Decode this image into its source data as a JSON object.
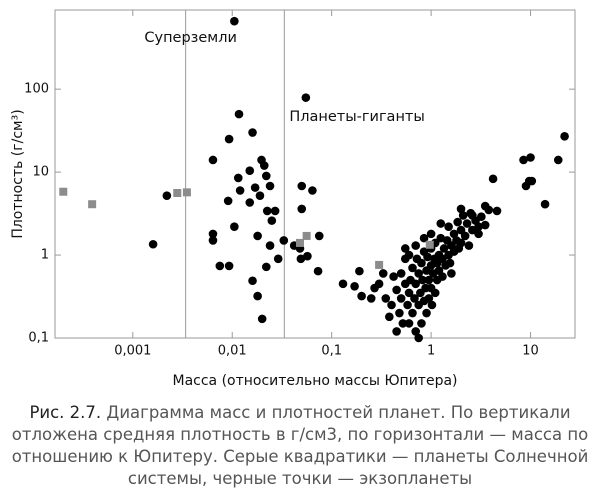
{
  "chart_data": {
    "type": "scatter",
    "x_label": "Масса (относительно массы Юпитера)",
    "y_label": "Плотность (г/см³)",
    "log_x": true,
    "log_y": true,
    "xlim": [
      0.000165,
      28
    ],
    "ylim": [
      0.1,
      900
    ],
    "xticks": [
      {
        "value": 0.001,
        "label": "0,001"
      },
      {
        "value": 0.01,
        "label": "0,01"
      },
      {
        "value": 0.1,
        "label": "0,1"
      },
      1,
      10
    ],
    "yticks": [
      {
        "value": 0.1,
        "label": "0,1"
      },
      1,
      10,
      100
    ],
    "vlines": [
      {
        "value": 0.0034,
        "label": "Суперземли"
      },
      {
        "value": 0.0334,
        "label": "Планеты-гиганты"
      }
    ],
    "series": [
      {
        "color": "#000000",
        "marker": "circle",
        "x": [
          0.0105,
          0.055,
          0.0117,
          0.016,
          0.0093,
          0.0064,
          0.0197,
          0.021,
          0.015,
          0.0115,
          0.022,
          0.024,
          0.05,
          0.064,
          0.012,
          0.017,
          0.019,
          0.0022,
          0.0091,
          0.015,
          0.027,
          0.0225,
          0.05,
          0.025,
          0.0105,
          0.0064,
          0.018,
          0.033,
          0.042,
          0.075,
          0.0016,
          0.0064,
          0.024,
          0.048,
          0.029,
          0.022,
          0.0075,
          0.0093,
          0.057,
          0.073,
          0.018,
          0.02,
          0.049,
          0.016,
          0.13,
          0.17,
          0.2,
          0.19,
          8.5,
          10,
          19,
          22,
          9,
          9.7,
          14,
          10.3,
          4.6,
          4.2,
          3.5,
          2.6,
          3,
          0.3,
          0.35,
          0.4,
          0.42,
          0.45,
          0.48,
          0.5,
          0.5,
          0.52,
          0.55,
          0.55,
          0.58,
          0.6,
          0.6,
          0.62,
          0.65,
          0.65,
          0.68,
          0.7,
          0.7,
          0.72,
          0.75,
          0.75,
          0.78,
          0.8,
          0.8,
          0.82,
          0.85,
          0.85,
          0.88,
          0.9,
          0.9,
          0.92,
          0.95,
          0.95,
          1.0,
          1.0,
          1.0,
          1.02,
          1.05,
          1.08,
          1.1,
          1.1,
          1.15,
          1.15,
          1.2,
          1.2,
          1.25,
          1.3,
          1.3,
          1.35,
          1.4,
          1.45,
          1.5,
          1.5,
          1.55,
          1.6,
          1.7,
          1.7,
          1.8,
          1.85,
          1.9,
          2.0,
          2.0,
          2.1,
          2.2,
          2.3,
          2.4,
          2.5,
          2.6,
          2.8,
          3.0,
          3.2,
          3.5,
          3.8,
          0.27,
          0.33,
          0.25,
          0.6,
          0.45,
          0.38,
          1.6,
          0.85,
          0.55,
          1.25,
          2.0,
          1.0,
          0.7,
          0.75
        ],
        "y": [
          660,
          79,
          50,
          30,
          25,
          14,
          14,
          12,
          10.4,
          8.5,
          9,
          6.8,
          6.8,
          6,
          6,
          6.5,
          5.2,
          5.2,
          4.5,
          4.3,
          3.4,
          3.4,
          3.6,
          2.6,
          2.2,
          1.8,
          1.7,
          1.5,
          1.3,
          1.7,
          1.35,
          1.5,
          1.3,
          1.2,
          0.9,
          0.72,
          0.74,
          0.74,
          0.97,
          0.64,
          0.32,
          0.17,
          0.9,
          0.49,
          0.45,
          0.42,
          0.32,
          0.64,
          14,
          15,
          14,
          27,
          6.8,
          7.8,
          4.1,
          7.8,
          3.4,
          8.3,
          3.9,
          3,
          2.2,
          0.45,
          0.3,
          0.25,
          0.55,
          0.38,
          0.2,
          0.3,
          0.6,
          0.15,
          0.45,
          0.9,
          0.25,
          0.35,
          1.0,
          0.5,
          0.2,
          0.7,
          0.3,
          0.12,
          0.45,
          0.9,
          0.25,
          0.6,
          0.35,
          0.15,
          0.8,
          0.5,
          0.28,
          1.1,
          0.4,
          0.65,
          0.2,
          0.95,
          0.3,
          0.5,
          0.75,
          0.4,
          1.2,
          0.25,
          0.6,
          0.9,
          0.35,
          1.4,
          0.5,
          0.8,
          1.0,
          0.65,
          1.6,
          0.9,
          0.55,
          1.2,
          0.75,
          1.5,
          1.0,
          2.2,
          0.8,
          1.3,
          1.8,
          1.1,
          1.5,
          2.5,
          1.2,
          2.0,
          1.4,
          3.0,
          1.7,
          2.4,
          1.3,
          3.2,
          2.0,
          2.6,
          1.8,
          2.9,
          2.3,
          3.5,
          0.4,
          0.6,
          0.3,
          0.15,
          0.12,
          0.18,
          0.6,
          1.6,
          1.2,
          2.4,
          3.6,
          1.8,
          1.3,
          0.1
        ]
      },
      {
        "color": "#8c8c8c",
        "marker": "square",
        "x": [
          0.0002,
          0.00039,
          0.0028,
          0.0035,
          0.048,
          0.056,
          0.3,
          0.97
        ],
        "y": [
          5.8,
          4.1,
          5.6,
          5.7,
          1.4,
          1.7,
          0.76,
          1.33
        ]
      }
    ]
  },
  "caption": {
    "label": "Рис. 2.7.",
    "text": "Диаграмма масс и плотностей планет. По вертикали отложена средняя плотность в г/см3, по горизонтали — масса по отношению к Юпитеру. Серые квадратики — планеты Солнечной системы, черные точки — экзопланеты"
  }
}
